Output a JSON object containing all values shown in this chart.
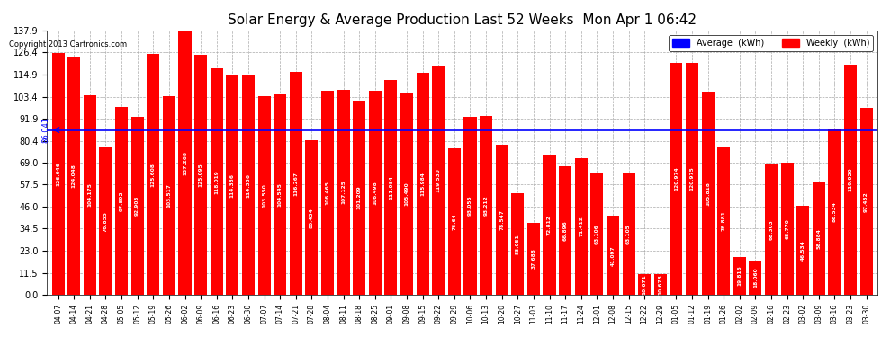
{
  "title": "Solar Energy & Average Production Last 52 Weeks  Mon Apr 1 06:42",
  "copyright": "Copyright 2013 Cartronics.com",
  "average_line": 86.041,
  "average_label": "86.041",
  "bar_color": "#ff0000",
  "average_line_color": "#0000ff",
  "background_color": "#ffffff",
  "plot_bg_color": "#ffffff",
  "grid_color": "#aaaaaa",
  "ylim": [
    0,
    137.9
  ],
  "yticks": [
    0.0,
    11.5,
    23.0,
    34.5,
    46.0,
    57.5,
    69.0,
    80.4,
    91.9,
    103.4,
    114.9,
    126.4,
    137.9
  ],
  "legend_avg_color": "#0000ff",
  "legend_weekly_color": "#ff0000",
  "categories": [
    "04-07",
    "04-14",
    "04-21",
    "04-28",
    "05-05",
    "05-12",
    "05-19",
    "05-26",
    "06-02",
    "06-09",
    "06-16",
    "06-23",
    "06-30",
    "07-07",
    "07-14",
    "07-21",
    "07-28",
    "08-04",
    "08-11",
    "08-18",
    "08-25",
    "09-01",
    "09-08",
    "09-15",
    "09-22",
    "09-29",
    "10-06",
    "10-13",
    "10-20",
    "10-27",
    "11-03",
    "11-10",
    "11-17",
    "11-24",
    "12-01",
    "12-08",
    "12-15",
    "12-22",
    "12-29",
    "01-05",
    "01-12",
    "01-19",
    "01-26",
    "02-02",
    "02-09",
    "02-16",
    "02-23",
    "03-02",
    "03-09",
    "03-16",
    "03-23",
    "03-30"
  ],
  "values": [
    126.046,
    124.048,
    104.175,
    76.855,
    97.892,
    92.903,
    125.608,
    103.517,
    137.268,
    125.095,
    118.019,
    114.336,
    114.336,
    103.55,
    104.545,
    116.267,
    80.434,
    106.465,
    107.125,
    101.209,
    106.498,
    111.984,
    105.49,
    115.984,
    119.53,
    76.64,
    93.056,
    93.212,
    78.547,
    53.051,
    37.688,
    72.812,
    66.896,
    71.412,
    63.106,
    41.097,
    63.105,
    10.671,
    10.678,
    120.974,
    120.975,
    105.818,
    76.881,
    19.816,
    18.06,
    68.303,
    68.77,
    46.534,
    58.884,
    86.534,
    119.92,
    97.432
  ],
  "value_labels": [
    "126.046",
    "124.048",
    "104.175",
    "76.855",
    "97.892",
    "92.903",
    "125.608",
    "103.517",
    "137.268",
    "125.095",
    "118.019",
    "114.336",
    "114.336",
    "103.550",
    "104.545",
    "116.267",
    "80.434",
    "106.465",
    "107.125",
    "101.209",
    "106.498",
    "111.984",
    "105.490",
    "115.984",
    "119.530",
    "76.64",
    "93.056",
    "93.212",
    "78.547",
    "53.051",
    "37.688",
    "72.812",
    "66.896",
    "71.412",
    "63.106",
    "41.097",
    "63.105",
    "10.671",
    "10.678",
    "120.974",
    "120.975",
    "105.818",
    "76.881",
    "19.816",
    "18.060",
    "68.303",
    "68.770",
    "46.534",
    "58.884",
    "86.534",
    "119.920",
    "97.432"
  ]
}
